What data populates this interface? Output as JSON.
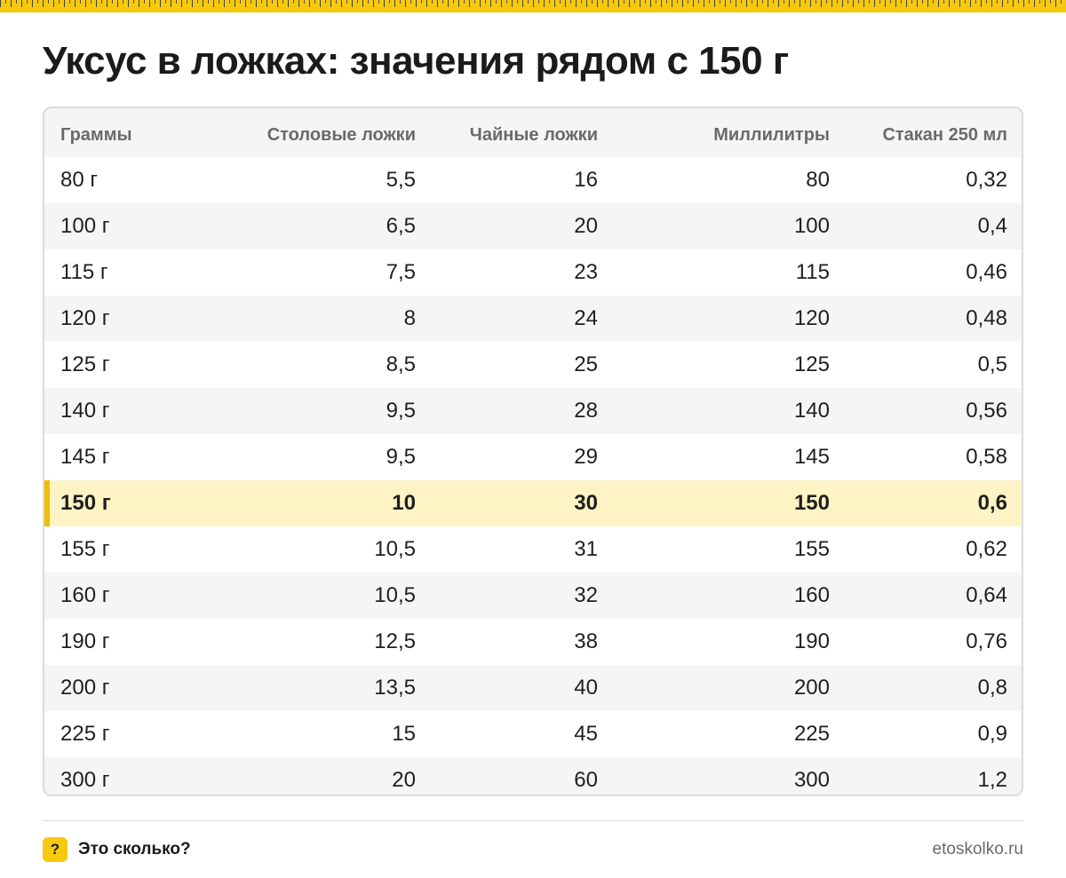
{
  "title": "Уксус в ложках: значения рядом с 150 г",
  "table": {
    "headers": [
      "Граммы",
      "Столовые ложки",
      "Чайные ложки",
      "Миллилитры",
      "Стакан 250 мл"
    ],
    "rows": [
      [
        "80 г",
        "5,5",
        "16",
        "80",
        "0,32"
      ],
      [
        "100 г",
        "6,5",
        "20",
        "100",
        "0,4"
      ],
      [
        "115 г",
        "7,5",
        "23",
        "115",
        "0,46"
      ],
      [
        "120 г",
        "8",
        "24",
        "120",
        "0,48"
      ],
      [
        "125 г",
        "8,5",
        "25",
        "125",
        "0,5"
      ],
      [
        "140 г",
        "9,5",
        "28",
        "140",
        "0,56"
      ],
      [
        "145 г",
        "9,5",
        "29",
        "145",
        "0,58"
      ],
      [
        "150 г",
        "10",
        "30",
        "150",
        "0,6"
      ],
      [
        "155 г",
        "10,5",
        "31",
        "155",
        "0,62"
      ],
      [
        "160 г",
        "10,5",
        "32",
        "160",
        "0,64"
      ],
      [
        "190 г",
        "12,5",
        "38",
        "190",
        "0,76"
      ],
      [
        "200 г",
        "13,5",
        "40",
        "200",
        "0,8"
      ],
      [
        "225 г",
        "15",
        "45",
        "225",
        "0,9"
      ],
      [
        "300 г",
        "20",
        "60",
        "300",
        "1,2"
      ]
    ],
    "highlight_row": 7
  },
  "footer": {
    "badge": "?",
    "brand": "Это сколько?",
    "site": "etoskolko.ru"
  },
  "colors": {
    "accent": "#f7c90e",
    "highlight_bg": "#fdf3c4",
    "highlight_bar": "#f0bd00"
  },
  "icons": {
    "ruler": "ruler-strip",
    "badge": "question-badge-icon"
  }
}
